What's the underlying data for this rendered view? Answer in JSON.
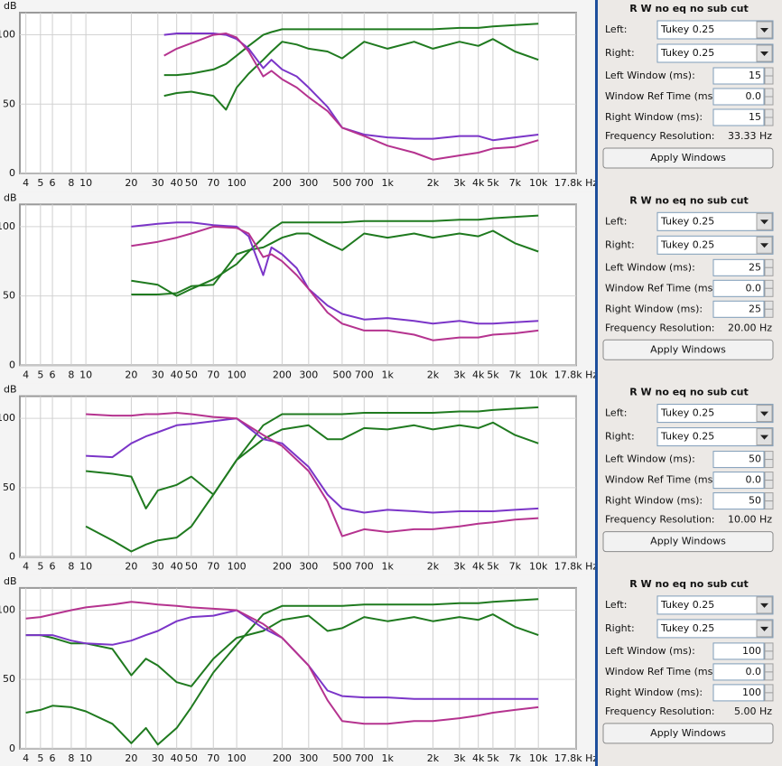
{
  "chart_data": [
    {
      "type": "line",
      "y_label": "dB",
      "xlog": true,
      "grid": true,
      "xlim": [
        3.65,
        17800
      ],
      "ylim": [
        0,
        116
      ],
      "yticks": [
        0,
        50,
        100
      ],
      "xticks": [
        4,
        5,
        6,
        8,
        10,
        20,
        30,
        40,
        50,
        70,
        100,
        200,
        300,
        500,
        700,
        {
          "value": 1000,
          "label": "1k"
        },
        {
          "value": 2000,
          "label": "2k"
        },
        {
          "value": 3000,
          "label": "3k"
        },
        {
          "value": 4000,
          "label": "4k"
        },
        {
          "value": 5000,
          "label": "5k"
        },
        {
          "value": 7000,
          "label": "7k"
        },
        {
          "value": 10000,
          "label": "10k"
        },
        {
          "value": 17800,
          "label": "17.8k Hz"
        }
      ],
      "x": [
        33,
        40,
        50,
        70,
        85,
        100,
        120,
        150,
        170,
        200,
        250,
        300,
        400,
        500,
        700,
        1000,
        1500,
        2000,
        3000,
        4000,
        5000,
        7000,
        10000
      ],
      "series": [
        {
          "color": "#1f7a1f",
          "values": [
            71,
            71,
            72,
            75,
            79,
            85,
            92,
            100,
            102,
            104,
            104,
            104,
            104,
            104,
            104,
            104,
            104,
            104,
            105,
            105,
            106,
            107,
            108
          ]
        },
        {
          "color": "#1f7a1f",
          "values": [
            56,
            58,
            59,
            56,
            46,
            62,
            72,
            82,
            88,
            95,
            93,
            90,
            88,
            83,
            95,
            90,
            95,
            90,
            95,
            92,
            97,
            88,
            82
          ]
        },
        {
          "color": "#7b35c8",
          "values": [
            100,
            101,
            101,
            101,
            100,
            97,
            90,
            76,
            82,
            75,
            70,
            62,
            48,
            33,
            28,
            26,
            25,
            25,
            27,
            27,
            24,
            26,
            28
          ]
        },
        {
          "color": "#b5338f",
          "values": [
            85,
            90,
            94,
            100,
            101,
            98,
            88,
            70,
            74,
            68,
            62,
            55,
            45,
            33,
            27,
            20,
            15,
            10,
            13,
            15,
            18,
            19,
            24
          ]
        }
      ]
    },
    {
      "type": "line",
      "y_label": "dB",
      "xlog": true,
      "grid": true,
      "xlim": [
        3.65,
        17800
      ],
      "ylim": [
        0,
        116
      ],
      "yticks": [
        0,
        50,
        100
      ],
      "xticks": [
        4,
        5,
        6,
        8,
        10,
        20,
        30,
        40,
        50,
        70,
        100,
        200,
        300,
        500,
        700,
        {
          "value": 1000,
          "label": "1k"
        },
        {
          "value": 2000,
          "label": "2k"
        },
        {
          "value": 3000,
          "label": "3k"
        },
        {
          "value": 4000,
          "label": "4k"
        },
        {
          "value": 5000,
          "label": "5k"
        },
        {
          "value": 7000,
          "label": "7k"
        },
        {
          "value": 10000,
          "label": "10k"
        },
        {
          "value": 17800,
          "label": "17.8k Hz"
        }
      ],
      "x": [
        20,
        30,
        40,
        50,
        70,
        100,
        120,
        150,
        170,
        200,
        250,
        300,
        400,
        500,
        700,
        1000,
        1500,
        2000,
        3000,
        4000,
        5000,
        7000,
        10000
      ],
      "series": [
        {
          "color": "#1f7a1f",
          "values": [
            61,
            58,
            50,
            55,
            62,
            73,
            82,
            92,
            98,
            103,
            103,
            103,
            103,
            103,
            104,
            104,
            104,
            104,
            105,
            105,
            106,
            107,
            108
          ]
        },
        {
          "color": "#1f7a1f",
          "values": [
            51,
            51,
            52,
            57,
            58,
            80,
            83,
            85,
            88,
            92,
            95,
            95,
            88,
            83,
            95,
            92,
            95,
            92,
            95,
            93,
            97,
            88,
            82
          ]
        },
        {
          "color": "#7b35c8",
          "values": [
            100,
            102,
            103,
            103,
            101,
            100,
            93,
            65,
            85,
            80,
            70,
            55,
            43,
            37,
            33,
            34,
            32,
            30,
            32,
            30,
            30,
            31,
            32
          ]
        },
        {
          "color": "#b5338f",
          "values": [
            86,
            89,
            92,
            95,
            100,
            99,
            95,
            78,
            80,
            75,
            65,
            55,
            38,
            30,
            25,
            25,
            22,
            18,
            20,
            20,
            22,
            23,
            25
          ]
        }
      ]
    },
    {
      "type": "line",
      "y_label": "dB",
      "xlog": true,
      "grid": true,
      "xlim": [
        3.65,
        17800
      ],
      "ylim": [
        0,
        116
      ],
      "yticks": [
        0,
        50,
        100
      ],
      "xticks": [
        4,
        5,
        6,
        8,
        10,
        20,
        30,
        40,
        50,
        70,
        100,
        200,
        300,
        500,
        700,
        {
          "value": 1000,
          "label": "1k"
        },
        {
          "value": 2000,
          "label": "2k"
        },
        {
          "value": 3000,
          "label": "3k"
        },
        {
          "value": 4000,
          "label": "4k"
        },
        {
          "value": 5000,
          "label": "5k"
        },
        {
          "value": 7000,
          "label": "7k"
        },
        {
          "value": 10000,
          "label": "10k"
        },
        {
          "value": 17800,
          "label": "17.8k Hz"
        }
      ],
      "x": [
        10,
        15,
        20,
        25,
        30,
        40,
        50,
        70,
        100,
        150,
        200,
        300,
        400,
        500,
        700,
        1000,
        1500,
        2000,
        3000,
        4000,
        5000,
        7000,
        10000
      ],
      "series": [
        {
          "color": "#1f7a1f",
          "values": [
            22,
            12,
            4,
            9,
            12,
            14,
            22,
            45,
            70,
            95,
            103,
            103,
            103,
            103,
            104,
            104,
            104,
            104,
            105,
            105,
            106,
            107,
            108
          ]
        },
        {
          "color": "#1f7a1f",
          "values": [
            62,
            60,
            58,
            35,
            48,
            52,
            58,
            45,
            70,
            85,
            92,
            95,
            85,
            85,
            93,
            92,
            95,
            92,
            95,
            93,
            97,
            88,
            82
          ]
        },
        {
          "color": "#7b35c8",
          "values": [
            73,
            72,
            82,
            87,
            90,
            95,
            96,
            98,
            100,
            85,
            82,
            65,
            45,
            35,
            32,
            34,
            33,
            32,
            33,
            33,
            33,
            34,
            35
          ]
        },
        {
          "color": "#b5338f",
          "values": [
            103,
            102,
            102,
            103,
            103,
            104,
            103,
            101,
            100,
            88,
            80,
            62,
            40,
            15,
            20,
            18,
            20,
            20,
            22,
            24,
            25,
            27,
            28
          ]
        }
      ]
    },
    {
      "type": "line",
      "y_label": "dB",
      "xlog": true,
      "grid": true,
      "xlim": [
        3.65,
        17800
      ],
      "ylim": [
        0,
        116
      ],
      "yticks": [
        0,
        50,
        100
      ],
      "xticks": [
        4,
        5,
        6,
        8,
        10,
        20,
        30,
        40,
        50,
        70,
        100,
        200,
        300,
        500,
        700,
        {
          "value": 1000,
          "label": "1k"
        },
        {
          "value": 2000,
          "label": "2k"
        },
        {
          "value": 3000,
          "label": "3k"
        },
        {
          "value": 4000,
          "label": "4k"
        },
        {
          "value": 5000,
          "label": "5k"
        },
        {
          "value": 7000,
          "label": "7k"
        },
        {
          "value": 10000,
          "label": "10k"
        },
        {
          "value": 17800,
          "label": "17.8k Hz"
        }
      ],
      "x": [
        4,
        5,
        6,
        8,
        10,
        15,
        20,
        25,
        30,
        40,
        50,
        70,
        100,
        150,
        200,
        300,
        400,
        500,
        700,
        1000,
        1500,
        2000,
        3000,
        4000,
        5000,
        7000,
        10000
      ],
      "series": [
        {
          "color": "#1f7a1f",
          "values": [
            26,
            28,
            31,
            30,
            27,
            18,
            4,
            15,
            3,
            15,
            30,
            55,
            75,
            97,
            103,
            103,
            103,
            103,
            104,
            104,
            104,
            104,
            105,
            105,
            106,
            107,
            108
          ]
        },
        {
          "color": "#1f7a1f",
          "values": [
            82,
            82,
            80,
            76,
            76,
            72,
            53,
            65,
            60,
            48,
            45,
            65,
            80,
            85,
            93,
            96,
            85,
            87,
            95,
            92,
            95,
            92,
            95,
            93,
            97,
            88,
            82
          ]
        },
        {
          "color": "#7b35c8",
          "values": [
            82,
            82,
            82,
            78,
            76,
            75,
            78,
            82,
            85,
            92,
            95,
            96,
            100,
            87,
            80,
            60,
            42,
            38,
            37,
            37,
            36,
            36,
            36,
            36,
            36,
            36,
            36
          ]
        },
        {
          "color": "#b5338f",
          "values": [
            94,
            95,
            97,
            100,
            102,
            104,
            106,
            105,
            104,
            103,
            102,
            101,
            100,
            90,
            80,
            60,
            35,
            20,
            18,
            18,
            20,
            20,
            22,
            24,
            26,
            28,
            30
          ]
        }
      ]
    }
  ],
  "settings_panels": [
    {
      "title": "R W no eq no sub cut",
      "selects": [
        {
          "label": "Left:",
          "value": "Tukey 0.25"
        },
        {
          "label": "Right:",
          "value": "Tukey 0.25"
        }
      ],
      "inputs": [
        {
          "label": "Left Window (ms):",
          "value": "15"
        },
        {
          "label": "Window Ref Time (ms):",
          "value": "0.0"
        },
        {
          "label": "Right Window (ms):",
          "value": "15"
        }
      ],
      "resolution": {
        "label": "Frequency Resolution:",
        "value": "33.33 Hz"
      },
      "button": "Apply Windows"
    },
    {
      "title": "R W no eq no sub cut",
      "selects": [
        {
          "label": "Left:",
          "value": "Tukey 0.25"
        },
        {
          "label": "Right:",
          "value": "Tukey 0.25"
        }
      ],
      "inputs": [
        {
          "label": "Left Window (ms):",
          "value": "25"
        },
        {
          "label": "Window Ref Time (ms):",
          "value": "0.0"
        },
        {
          "label": "Right Window (ms):",
          "value": "25"
        }
      ],
      "resolution": {
        "label": "Frequency Resolution:",
        "value": "20.00 Hz"
      },
      "button": "Apply Windows"
    },
    {
      "title": "R W no eq no sub cut",
      "selects": [
        {
          "label": "Left:",
          "value": "Tukey 0.25"
        },
        {
          "label": "Right:",
          "value": "Tukey 0.25"
        }
      ],
      "inputs": [
        {
          "label": "Left Window (ms):",
          "value": "50"
        },
        {
          "label": "Window Ref Time (ms):",
          "value": "0.0"
        },
        {
          "label": "Right Window (ms):",
          "value": "50"
        }
      ],
      "resolution": {
        "label": "Frequency Resolution:",
        "value": "10.00 Hz"
      },
      "button": "Apply Windows"
    },
    {
      "title": "R W no eq no sub cut",
      "selects": [
        {
          "label": "Left:",
          "value": "Tukey 0.25"
        },
        {
          "label": "Right:",
          "value": "Tukey 0.25"
        }
      ],
      "inputs": [
        {
          "label": "Left Window (ms):",
          "value": "100"
        },
        {
          "label": "Window Ref Time (ms):",
          "value": "0.0"
        },
        {
          "label": "Right Window (ms):",
          "value": "100"
        }
      ],
      "resolution": {
        "label": "Frequency Resolution:",
        "value": "5.00 Hz"
      },
      "button": "Apply Windows"
    }
  ]
}
